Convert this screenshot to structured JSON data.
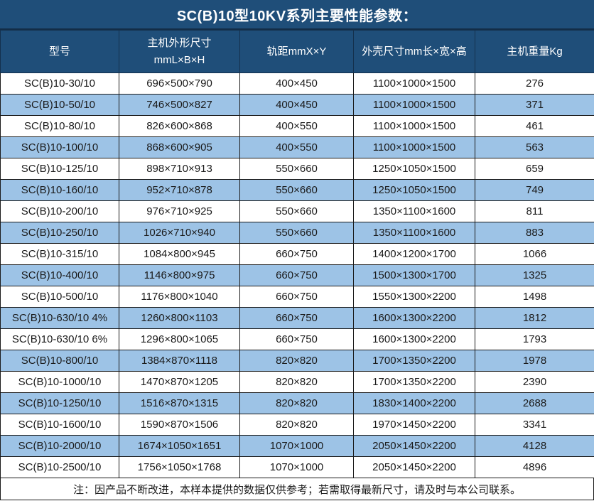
{
  "title": "SC(B)10型10KV系列主要性能参数：",
  "note": "注：因产品不断改进，本样本提供的数据仅供参考；若需取得最新尺寸，请及时与本公司联系。",
  "colors": {
    "header_bg": "#1F4E79",
    "header_text": "#ffffff",
    "stripe_bg": "#9DC3E6",
    "row_bg": "#ffffff",
    "border": "#1a1a1a"
  },
  "table": {
    "headers": [
      "型号",
      "主机外形尺寸\nmmL×B×H",
      "轨距mmX×Y",
      "外壳尺寸mm长×宽×高",
      "主机重量Kg"
    ],
    "rows": [
      [
        "SC(B)10-30/10",
        "696×500×790",
        "400×450",
        "1100×1000×1500",
        "276"
      ],
      [
        "SC(B)10-50/10",
        "746×500×827",
        "400×450",
        "1100×1000×1500",
        "371"
      ],
      [
        "SC(B)10-80/10",
        "826×600×868",
        "400×550",
        "1100×1000×1500",
        "461"
      ],
      [
        "SC(B)10-100/10",
        "868×600×905",
        "400×550",
        "1100×1000×1500",
        "563"
      ],
      [
        "SC(B)10-125/10",
        "898×710×913",
        "550×660",
        "1250×1050×1500",
        "659"
      ],
      [
        "SC(B)10-160/10",
        "952×710×878",
        "550×660",
        "1250×1050×1500",
        "749"
      ],
      [
        "SC(B)10-200/10",
        "976×710×925",
        "550×660",
        "1350×1100×1600",
        "811"
      ],
      [
        "SC(B)10-250/10",
        "1026×710×940",
        "550×660",
        "1350×1100×1600",
        "883"
      ],
      [
        "SC(B)10-315/10",
        "1084×800×945",
        "660×750",
        "1400×1200×1700",
        "1066"
      ],
      [
        "SC(B)10-400/10",
        "1146×800×975",
        "660×750",
        "1500×1300×1700",
        "1325"
      ],
      [
        "SC(B)10-500/10",
        "1176×800×1040",
        "660×750",
        "1550×1300×2200",
        "1498"
      ],
      [
        "SC(B)10-630/10 4%",
        "1260×800×1103",
        "660×750",
        "1600×1300×2200",
        "1812"
      ],
      [
        "SC(B)10-630/10 6%",
        "1296×800×1065",
        "660×750",
        "1600×1300×2200",
        "1793"
      ],
      [
        "SC(B)10-800/10",
        "1384×870×1118",
        "820×820",
        "1700×1350×2200",
        "1978"
      ],
      [
        "SC(B)10-1000/10",
        "1470×870×1205",
        "820×820",
        "1700×1350×2200",
        "2390"
      ],
      [
        "SC(B)10-1250/10",
        "1516×870×1315",
        "820×820",
        "1830×1400×2200",
        "2688"
      ],
      [
        "SC(B)10-1600/10",
        "1590×870×1506",
        "820×820",
        "1970×1450×2200",
        "3341"
      ],
      [
        "SC(B)10-2000/10",
        "1674×1050×1651",
        "1070×1000",
        "2050×1450×2200",
        "4128"
      ],
      [
        "SC(B)10-2500/10",
        "1756×1050×1768",
        "1070×1000",
        "2050×1450×2200",
        "4896"
      ]
    ]
  }
}
